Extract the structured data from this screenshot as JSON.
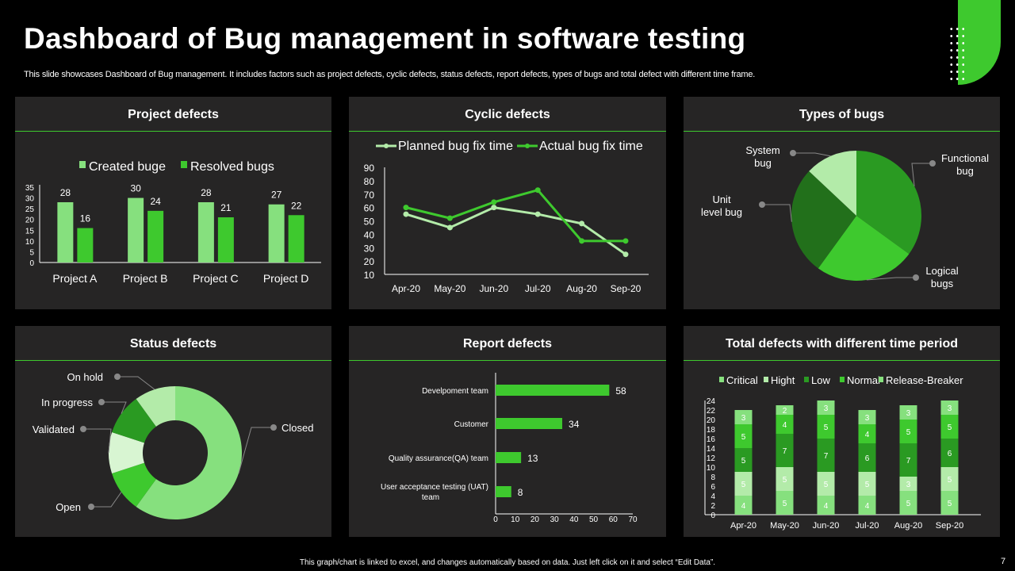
{
  "title": "Dashboard of Bug management in software testing",
  "subtitle": "This slide showcases Dashboard of Bug management. It includes factors such as project defects, cyclic defects, status defects, report defects, types of bugs and total defect with different time frame.",
  "footer": "This graph/chart is linked to excel, and changes automatically based on data. Just left click on it and select “Edit Data”.",
  "page_number": "7",
  "colors": {
    "accent": "#3ec92e",
    "light": "#86e07e",
    "dark": "#2a9a22",
    "darker": "#22701b",
    "pale": "#b3eba9",
    "palest": "#d8f5d2",
    "panel": "#262525"
  },
  "panels": {
    "project": "Project defects",
    "cyclic": "Cyclic defects",
    "types": "Types of bugs",
    "status": "Status defects",
    "report": "Report defects",
    "total": "Total defects with different time period"
  },
  "chart_data": [
    {
      "type": "bar",
      "id": "project",
      "categories": [
        "Project A",
        "Project B",
        "Project C",
        "Project D"
      ],
      "series": [
        {
          "name": "Created buge",
          "values": [
            28,
            30,
            28,
            27
          ]
        },
        {
          "name": "Resolved bugs",
          "values": [
            16,
            24,
            21,
            22
          ]
        }
      ],
      "ylim": [
        0,
        35
      ],
      "yticks": [
        0,
        5,
        10,
        15,
        20,
        25,
        30,
        35
      ],
      "legend": "top",
      "grid": false
    },
    {
      "type": "line",
      "id": "cyclic",
      "categories": [
        "Apr-20",
        "May-20",
        "Jun-20",
        "Jul-20",
        "Aug-20",
        "Sep-20"
      ],
      "series": [
        {
          "name": "Planned bug fix time",
          "values": [
            55,
            45,
            60,
            55,
            48,
            25
          ]
        },
        {
          "name": "Actual bug fix time",
          "values": [
            60,
            52,
            64,
            73,
            35,
            35
          ]
        }
      ],
      "ylim": [
        10,
        90
      ],
      "yticks": [
        10,
        20,
        30,
        40,
        50,
        60,
        70,
        80,
        90
      ],
      "legend": "top",
      "grid": false
    },
    {
      "type": "pie",
      "id": "types",
      "labels": [
        "Functional bug",
        "Logical bugs",
        "Unit level  bug",
        "System bug"
      ],
      "values": [
        35,
        25,
        27,
        13
      ]
    },
    {
      "type": "pie",
      "id": "status",
      "donut": true,
      "labels": [
        "Closed",
        "Open",
        "Validated",
        "In progress",
        "On hold"
      ],
      "values": [
        60,
        10,
        10,
        10,
        10
      ]
    },
    {
      "type": "bar",
      "id": "report",
      "orientation": "horizontal",
      "categories": [
        "Develpoment team",
        "Customer",
        "Quality assurance(QA) team",
        "User acceptance testing (UAT) team"
      ],
      "values": [
        58,
        34,
        13,
        8
      ],
      "xlim": [
        0,
        70
      ],
      "xticks": [
        0,
        10,
        20,
        30,
        40,
        50,
        60,
        70
      ]
    },
    {
      "type": "bar",
      "id": "total",
      "stacked": true,
      "categories": [
        "Apr-20",
        "May-20",
        "Jun-20",
        "Jul-20",
        "Aug-20",
        "Sep-20"
      ],
      "series": [
        {
          "name": "Critical",
          "values": [
            4,
            5,
            4,
            4,
            5,
            5
          ]
        },
        {
          "name": "Hight",
          "values": [
            5,
            5,
            5,
            5,
            3,
            5
          ]
        },
        {
          "name": "Low",
          "values": [
            5,
            7,
            7,
            6,
            7,
            6
          ]
        },
        {
          "name": "Normal",
          "values": [
            5,
            4,
            5,
            4,
            5,
            5
          ]
        },
        {
          "name": "Release-Breaker",
          "values": [
            3,
            2,
            3,
            3,
            3,
            3
          ]
        }
      ],
      "ylim": [
        0,
        24
      ],
      "yticks": [
        0,
        2,
        4,
        6,
        8,
        10,
        12,
        14,
        16,
        18,
        20,
        22,
        24
      ],
      "legend": "top"
    }
  ]
}
